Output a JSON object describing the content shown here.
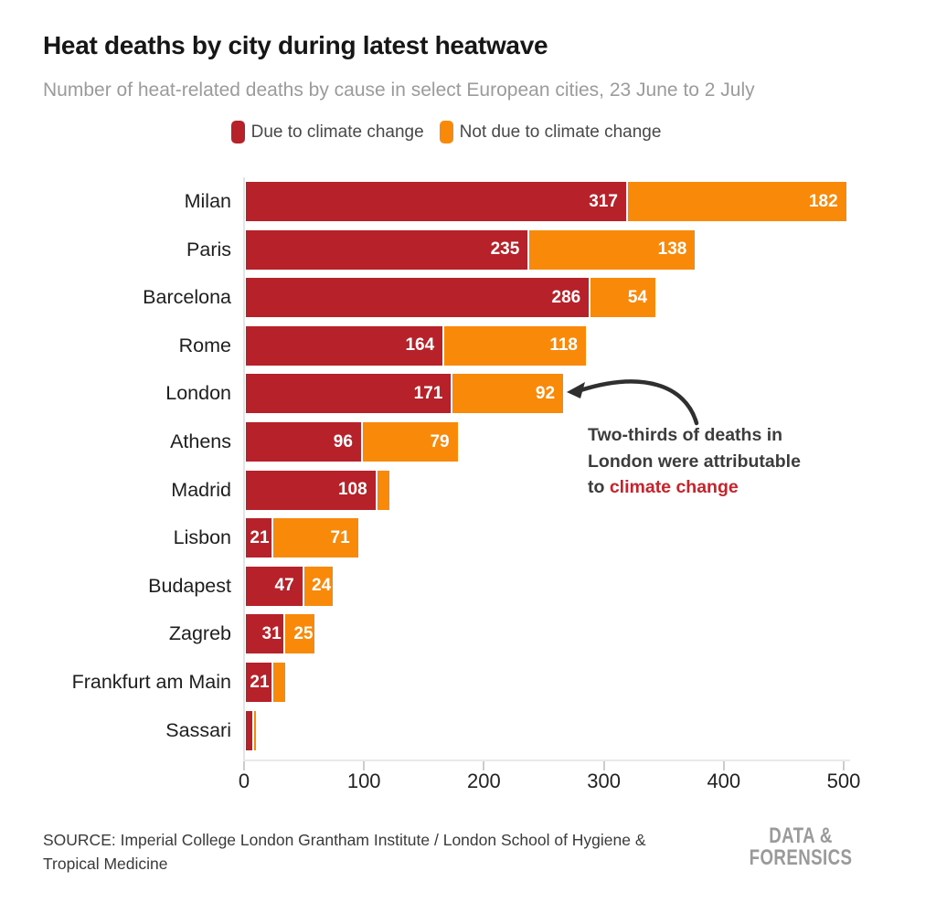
{
  "header": {
    "title": "Heat deaths by city during latest heatwave",
    "subtitle": "Number of heat-related deaths by cause in select European cities, 23 June to 2 July"
  },
  "legend": {
    "items": [
      {
        "label": "Due to climate change",
        "color": "#b7222a"
      },
      {
        "label": "Not due to climate change",
        "color": "#f98908"
      }
    ]
  },
  "chart_data": {
    "type": "bar",
    "orientation": "horizontal",
    "stacked": true,
    "title": "Heat deaths by city during latest heatwave",
    "xlabel": "",
    "ylabel": "",
    "xlim": [
      0,
      500
    ],
    "x_ticks": [
      0,
      100,
      200,
      300,
      400,
      500
    ],
    "grid": false,
    "legend_position": "top",
    "categories": [
      "Milan",
      "Paris",
      "Barcelona",
      "Rome",
      "London",
      "Athens",
      "Madrid",
      "Lisbon",
      "Budapest",
      "Zagreb",
      "Frankfurt am Main",
      "Sassari"
    ],
    "series": [
      {
        "name": "Due to climate change",
        "color": "#b7222a",
        "values": [
          317,
          235,
          286,
          164,
          171,
          96,
          108,
          21,
          47,
          31,
          21,
          5
        ],
        "labels": [
          "317",
          "235",
          "286",
          "164",
          "171",
          "96",
          "108",
          "21",
          "47",
          "31",
          "21",
          ""
        ]
      },
      {
        "name": "Not due to climate change",
        "color": "#f98908",
        "values": [
          182,
          138,
          54,
          118,
          92,
          79,
          10,
          71,
          24,
          25,
          10,
          2
        ],
        "labels": [
          "182",
          "138",
          "54",
          "118",
          "92",
          "79",
          "",
          "71",
          "24",
          "25",
          "",
          ""
        ]
      }
    ],
    "value_label_color": "#ffffff",
    "annotation": {
      "line1": "Two-thirds of deaths in",
      "line2": "London were attributable",
      "line3_prefix": "to ",
      "highlight": "climate change",
      "highlight_color": "#c7232c",
      "text_color": "#3c3c3c",
      "arrow_color": "#2f2f2f",
      "arrow_target": "end of London bar"
    }
  },
  "footer": {
    "source": "SOURCE: Imperial College London Grantham Institute / London School of Hygiene & Tropical Medicine",
    "logo_line1": "DATA &",
    "logo_line2": "FORENSICS"
  }
}
